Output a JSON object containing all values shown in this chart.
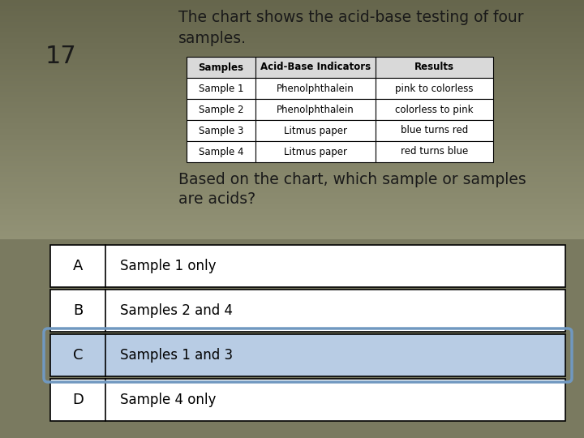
{
  "question_number": "17",
  "question_text_line1": "The chart shows the acid-base testing of four",
  "question_text_line2": "samples.",
  "sub_question_line1": "Based on the chart, which sample or samples",
  "sub_question_line2": "are acids?",
  "table_headers": [
    "Samples",
    "Acid-Base Indicators",
    "Results"
  ],
  "table_rows": [
    [
      "Sample 1",
      "Phenolphthalein",
      "pink to colorless"
    ],
    [
      "Sample 2",
      "Phenolphthalein",
      "colorless to pink"
    ],
    [
      "Sample 3",
      "Litmus paper",
      "blue turns red"
    ],
    [
      "Sample 4",
      "Litmus paper",
      "red turns blue"
    ]
  ],
  "options": [
    [
      "A",
      "Sample 1 only"
    ],
    [
      "B",
      "Samples 2 and 4"
    ],
    [
      "C",
      "Samples 1 and 3"
    ],
    [
      "D",
      "Sample 4 only"
    ]
  ],
  "highlighted_option": "C",
  "background_top": "#6E6E55",
  "background_bottom": "#BEBEA0",
  "table_header_bg": "#D9D9D9",
  "table_cell_bg": "#FFFFFF",
  "option_bg_normal": "#FFFFFF",
  "option_bg_highlighted": "#B8CCE4",
  "highlight_border_color": "#7098C0",
  "text_color": "#1A1A1A",
  "number_color": "#1A1A1A",
  "options_area_bg": "#888878"
}
